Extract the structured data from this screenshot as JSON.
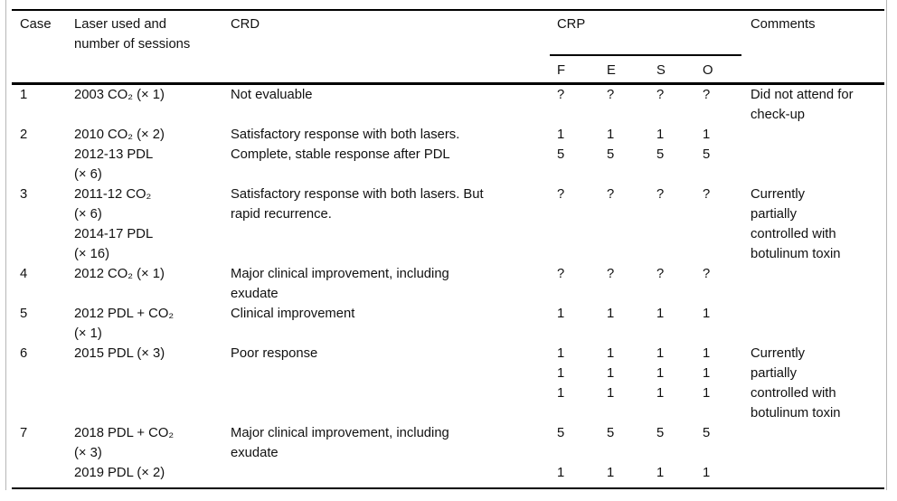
{
  "header": {
    "case": "Case",
    "laser": "Laser used and\nnumber of sessions",
    "crd": "CRD",
    "crp": "CRP",
    "crp_sub": [
      "F",
      "E",
      "S",
      "O"
    ],
    "comments": "Comments"
  },
  "rows": [
    {
      "case": "1",
      "laser": [
        "2003 CO₂ (× 1)"
      ],
      "crd": [
        "Not evaluable"
      ],
      "f": [
        "?"
      ],
      "e": [
        "?"
      ],
      "s": [
        "?"
      ],
      "o": [
        "?"
      ],
      "comments": [
        "Did not attend for",
        "check-up"
      ]
    },
    {
      "case": "2",
      "laser": [
        "2010 CO₂ (× 2)",
        "2012-13 PDL",
        "(× 6)"
      ],
      "crd": [
        "Satisfactory response with both lasers.",
        "Complete, stable response after PDL"
      ],
      "f": [
        "1",
        "5"
      ],
      "e": [
        "1",
        "5"
      ],
      "s": [
        "1",
        "5"
      ],
      "o": [
        "1",
        "5"
      ],
      "comments": []
    },
    {
      "case": "3",
      "laser": [
        "2011-12 CO₂",
        "(× 6)",
        "2014-17 PDL",
        "(× 16)"
      ],
      "crd": [
        "Satisfactory response with both lasers. But",
        "rapid recurrence."
      ],
      "f": [
        "?"
      ],
      "e": [
        "?"
      ],
      "s": [
        "?"
      ],
      "o": [
        "?"
      ],
      "comments": [
        "Currently",
        "partially",
        "controlled with",
        "botulinum toxin"
      ]
    },
    {
      "case": "4",
      "laser": [
        "2012 CO₂ (× 1)"
      ],
      "crd": [
        "Major clinical improvement, including",
        "exudate"
      ],
      "f": [
        "?"
      ],
      "e": [
        "?"
      ],
      "s": [
        "?"
      ],
      "o": [
        "?"
      ],
      "comments": []
    },
    {
      "case": "5",
      "laser": [
        "2012 PDL + CO₂",
        "(× 1)"
      ],
      "crd": [
        "Clinical improvement"
      ],
      "f": [
        "1"
      ],
      "e": [
        "1"
      ],
      "s": [
        "1"
      ],
      "o": [
        "1"
      ],
      "comments": []
    },
    {
      "case": "6",
      "laser": [
        "2015 PDL (× 3)"
      ],
      "crd": [
        "Poor response"
      ],
      "f": [
        "1",
        "1",
        "1"
      ],
      "e": [
        "1",
        "1",
        "1"
      ],
      "s": [
        "1",
        "1",
        "1"
      ],
      "o": [
        "1",
        "1",
        "1"
      ],
      "comments": [
        "Currently",
        "partially",
        "controlled with",
        "botulinum toxin"
      ]
    },
    {
      "case": "7",
      "laser": [
        "2018 PDL + CO₂",
        "(× 3)",
        "2019 PDL (× 2)"
      ],
      "crd": [
        "Major clinical improvement, including",
        "exudate"
      ],
      "f": [
        "5",
        "",
        "1"
      ],
      "e": [
        "5",
        "",
        "1"
      ],
      "s": [
        "5",
        "",
        "1"
      ],
      "o": [
        "5",
        "",
        "1"
      ],
      "comments": []
    }
  ]
}
